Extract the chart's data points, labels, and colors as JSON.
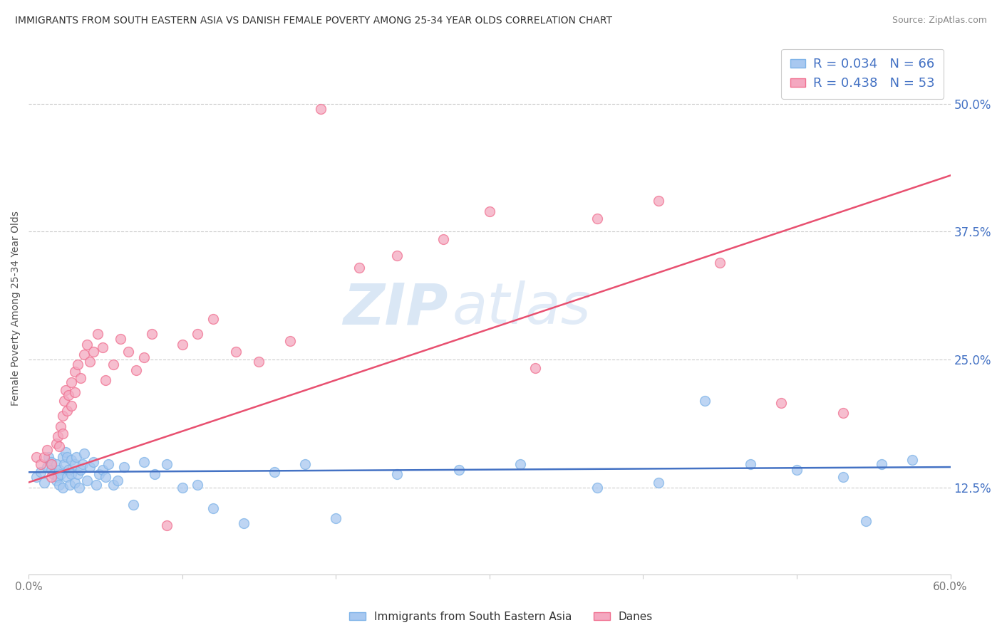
{
  "title": "IMMIGRANTS FROM SOUTH EASTERN ASIA VS DANISH FEMALE POVERTY AMONG 25-34 YEAR OLDS CORRELATION CHART",
  "source": "Source: ZipAtlas.com",
  "ylabel": "Female Poverty Among 25-34 Year Olds",
  "xlim": [
    0.0,
    0.6
  ],
  "ylim": [
    0.04,
    0.56
  ],
  "xticks": [
    0.0,
    0.1,
    0.2,
    0.3,
    0.4,
    0.5,
    0.6
  ],
  "xticklabels": [
    "0.0%",
    "",
    "",
    "",
    "",
    "",
    "60.0%"
  ],
  "yticks": [
    0.125,
    0.25,
    0.375,
    0.5
  ],
  "yticklabels": [
    "12.5%",
    "25.0%",
    "37.5%",
    "50.0%"
  ],
  "blue_R": 0.034,
  "blue_N": 66,
  "pink_R": 0.438,
  "pink_N": 53,
  "blue_color": "#A8C8F0",
  "pink_color": "#F4A8C0",
  "blue_edge_color": "#7EB3E8",
  "pink_edge_color": "#F07090",
  "blue_line_color": "#4472C4",
  "pink_line_color": "#E85070",
  "grid_color": "#CCCCCC",
  "background_color": "#FFFFFF",
  "watermark_zip": "ZIP",
  "watermark_atlas": "atlas",
  "legend_label_blue": "Immigrants from South Eastern Asia",
  "legend_label_pink": "Danes",
  "blue_scatter_x": [
    0.005,
    0.008,
    0.01,
    0.012,
    0.013,
    0.015,
    0.015,
    0.016,
    0.018,
    0.018,
    0.019,
    0.02,
    0.02,
    0.021,
    0.022,
    0.022,
    0.023,
    0.024,
    0.025,
    0.025,
    0.026,
    0.027,
    0.028,
    0.028,
    0.03,
    0.03,
    0.031,
    0.032,
    0.033,
    0.034,
    0.035,
    0.036,
    0.038,
    0.04,
    0.042,
    0.044,
    0.046,
    0.048,
    0.05,
    0.052,
    0.055,
    0.058,
    0.062,
    0.068,
    0.075,
    0.082,
    0.09,
    0.1,
    0.11,
    0.12,
    0.14,
    0.16,
    0.18,
    0.2,
    0.24,
    0.28,
    0.32,
    0.37,
    0.41,
    0.44,
    0.47,
    0.5,
    0.53,
    0.545,
    0.555,
    0.575
  ],
  "blue_scatter_y": [
    0.135,
    0.14,
    0.13,
    0.145,
    0.155,
    0.15,
    0.142,
    0.138,
    0.132,
    0.148,
    0.135,
    0.128,
    0.142,
    0.138,
    0.155,
    0.125,
    0.148,
    0.16,
    0.135,
    0.155,
    0.142,
    0.128,
    0.152,
    0.138,
    0.13,
    0.148,
    0.155,
    0.138,
    0.125,
    0.142,
    0.148,
    0.158,
    0.132,
    0.145,
    0.15,
    0.128,
    0.138,
    0.142,
    0.135,
    0.148,
    0.128,
    0.132,
    0.145,
    0.108,
    0.15,
    0.138,
    0.148,
    0.125,
    0.128,
    0.105,
    0.09,
    0.14,
    0.148,
    0.095,
    0.138,
    0.142,
    0.148,
    0.125,
    0.13,
    0.21,
    0.148,
    0.142,
    0.135,
    0.092,
    0.148,
    0.152
  ],
  "pink_scatter_x": [
    0.005,
    0.008,
    0.01,
    0.012,
    0.015,
    0.015,
    0.018,
    0.019,
    0.02,
    0.021,
    0.022,
    0.022,
    0.023,
    0.024,
    0.025,
    0.026,
    0.028,
    0.028,
    0.03,
    0.03,
    0.032,
    0.034,
    0.036,
    0.038,
    0.04,
    0.042,
    0.045,
    0.048,
    0.05,
    0.055,
    0.06,
    0.065,
    0.07,
    0.075,
    0.08,
    0.09,
    0.1,
    0.11,
    0.12,
    0.135,
    0.15,
    0.17,
    0.19,
    0.215,
    0.24,
    0.27,
    0.3,
    0.33,
    0.37,
    0.41,
    0.45,
    0.49,
    0.53
  ],
  "pink_scatter_y": [
    0.155,
    0.148,
    0.155,
    0.162,
    0.148,
    0.135,
    0.168,
    0.175,
    0.165,
    0.185,
    0.178,
    0.195,
    0.21,
    0.22,
    0.2,
    0.215,
    0.205,
    0.228,
    0.218,
    0.238,
    0.245,
    0.232,
    0.255,
    0.265,
    0.248,
    0.258,
    0.275,
    0.262,
    0.23,
    0.245,
    0.27,
    0.258,
    0.24,
    0.252,
    0.275,
    0.088,
    0.265,
    0.275,
    0.29,
    0.258,
    0.248,
    0.268,
    0.495,
    0.34,
    0.352,
    0.368,
    0.395,
    0.242,
    0.388,
    0.405,
    0.345,
    0.208,
    0.198
  ],
  "pink_line_start_y": 0.13,
  "pink_line_end_y": 0.43,
  "blue_line_start_y": 0.14,
  "blue_line_end_y": 0.145
}
